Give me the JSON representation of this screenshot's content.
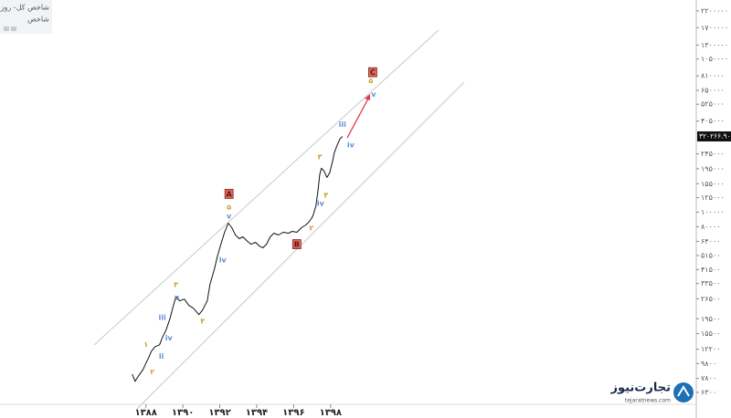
{
  "chart_data": {
    "type": "line",
    "title": "شاخص کل- روزانه",
    "subtitle": "شاخص",
    "log_scale": true,
    "color": "#111111",
    "x": [
      1387.26,
      1387.41,
      1387.6,
      1387.85,
      1388.0,
      1388.15,
      1388.3,
      1388.5,
      1388.74,
      1388.89,
      1389.09,
      1389.29,
      1389.49,
      1389.63,
      1389.83,
      1390.08,
      1390.33,
      1390.57,
      1390.87,
      1391.07,
      1391.32,
      1391.47,
      1391.71,
      1391.86,
      1392.06,
      1392.26,
      1392.46,
      1392.65,
      1392.85,
      1393.05,
      1393.25,
      1393.45,
      1393.69,
      1393.94,
      1394.14,
      1394.34,
      1394.53,
      1394.73,
      1394.93,
      1395.18,
      1395.43,
      1395.72,
      1395.92,
      1396.17,
      1396.42,
      1396.66,
      1396.81,
      1396.96,
      1397.06,
      1397.21,
      1397.31,
      1397.41,
      1397.5,
      1397.65,
      1397.8,
      1397.95,
      1398.1,
      1398.2,
      1398.35,
      1398.5,
      1398.65
    ],
    "values": [
      8340,
      7460,
      8110,
      8950,
      9870,
      10740,
      11850,
      12710,
      13070,
      14630,
      16370,
      19370,
      23920,
      27520,
      25650,
      26380,
      23920,
      22930,
      20780,
      22290,
      25650,
      33030,
      41930,
      50330,
      61250,
      73520,
      84610,
      78880,
      70500,
      66650,
      68540,
      64830,
      61250,
      63000,
      59560,
      57920,
      61250,
      68540,
      72510,
      70500,
      73520,
      72510,
      74530,
      73520,
      78880,
      82280,
      85810,
      90780,
      96010,
      110500,
      138300,
      178100,
      196400,
      188400,
      170700,
      183100,
      216700,
      249400,
      279000,
      307900,
      320266.9
    ],
    "xlim": [
      1380.1,
      1417.7
    ],
    "ylim": [
      4250,
      2600000
    ],
    "xticks": [
      {
        "value": 1388,
        "label": "۱۳۸۸"
      },
      {
        "value": 1390,
        "label": "۱۳۹۰"
      },
      {
        "value": 1392,
        "label": "۱۳۹۲"
      },
      {
        "value": 1394,
        "label": "۱۳۹۴"
      },
      {
        "value": 1396,
        "label": "۱۳۹۶"
      },
      {
        "value": 1398,
        "label": "۱۳۹۸"
      }
    ],
    "yticks": [
      {
        "value": 2200000,
        "label": "۲۲۰۰۰۰۰"
      },
      {
        "value": 1700000,
        "label": "۱۷۰۰۰۰۰"
      },
      {
        "value": 1300000,
        "label": "۱۳۰۰۰۰۰"
      },
      {
        "value": 1050000,
        "label": "۱۰۵۰۰۰۰"
      },
      {
        "value": 810000,
        "label": "۸۱۰۰۰۰"
      },
      {
        "value": 650000,
        "label": "۶۵۰۰۰۰"
      },
      {
        "value": 525000,
        "label": "۵۲۵۰۰۰"
      },
      {
        "value": 405000,
        "label": "۴۰۵۰۰۰"
      },
      {
        "value": 245000,
        "label": "۲۴۵۰۰۰"
      },
      {
        "value": 195000,
        "label": "۱۹۵۰۰۰"
      },
      {
        "value": 155000,
        "label": "۱۵۵۰۰۰"
      },
      {
        "value": 125000,
        "label": "۱۲۵۰۰۰"
      },
      {
        "value": 100000,
        "label": "۱۰۰۰۰۰"
      },
      {
        "value": 80000,
        "label": "۸۰۰۰۰"
      },
      {
        "value": 64000,
        "label": "۶۴۰۰۰"
      },
      {
        "value": 51500,
        "label": "۵۱۵۰۰"
      },
      {
        "value": 41500,
        "label": "۴۱۵۰۰"
      },
      {
        "value": 33500,
        "label": "۳۳۵۰۰"
      },
      {
        "value": 26500,
        "label": "۲۶۵۰۰"
      },
      {
        "value": 19500,
        "label": "۱۹۵۰۰"
      },
      {
        "value": 15500,
        "label": "۱۵۵۰۰"
      },
      {
        "value": 12200,
        "label": "۱۲۲۰۰"
      },
      {
        "value": 9800,
        "label": "۹۸۰۰"
      },
      {
        "value": 7800,
        "label": "۷۸۰۰"
      },
      {
        "value": 6300,
        "label": "۶۳۰۰"
      }
    ],
    "last_price": {
      "value": 320266.9,
      "label": "۳۲۰۲۶۶.۹۰"
    },
    "annotations": [
      {
        "text": "A",
        "x": 1392.5,
        "y": 132600,
        "color": "#e0665a",
        "box": true
      },
      {
        "text": "۵",
        "x": 1392.5,
        "y": 108900,
        "color": "#c9a227"
      },
      {
        "text": "v",
        "x": 1392.5,
        "y": 94700,
        "color": "#5b8fd6"
      },
      {
        "text": "B",
        "x": 1396.17,
        "y": 61250,
        "color": "#e0665a",
        "box": true
      },
      {
        "text": "C",
        "x": 1400.28,
        "y": 858000,
        "color": "#e0665a",
        "box": true
      },
      {
        "text": "۵",
        "x": 1400.18,
        "y": 756000,
        "color": "#c9a227"
      },
      {
        "text": "v",
        "x": 1400.33,
        "y": 612400,
        "color": "#5b8fd6"
      },
      {
        "text": "iii",
        "x": 1398.64,
        "y": 385500,
        "color": "#5b8fd6"
      },
      {
        "text": "iv",
        "x": 1399.09,
        "y": 283000,
        "color": "#5b8fd6"
      },
      {
        "text": "۳",
        "x": 1397.41,
        "y": 235700,
        "color": "#c9a227"
      },
      {
        "text": "۴",
        "x": 1397.75,
        "y": 130700,
        "color": "#c9a227"
      },
      {
        "text": "iv",
        "x": 1397.46,
        "y": 115200,
        "color": "#5b8fd6"
      },
      {
        "text": "۲",
        "x": 1396.96,
        "y": 78880,
        "color": "#c9a227"
      },
      {
        "text": "iv",
        "x": 1392.16,
        "y": 48250,
        "color": "#5b8fd6"
      },
      {
        "text": "۳",
        "x": 1389.63,
        "y": 33030,
        "color": "#c9a227"
      },
      {
        "text": "v",
        "x": 1389.68,
        "y": 27150,
        "color": "#5b8fd6"
      },
      {
        "text": "iii",
        "x": 1388.89,
        "y": 19920,
        "color": "#5b8fd6"
      },
      {
        "text": "iv",
        "x": 1389.24,
        "y": 14630,
        "color": "#5b8fd6"
      },
      {
        "text": "۴",
        "x": 1391.07,
        "y": 18830,
        "color": "#c9a227"
      },
      {
        "text": "۱",
        "x": 1388.0,
        "y": 13260,
        "color": "#c9a227"
      },
      {
        "text": "ii",
        "x": 1388.84,
        "y": 11050,
        "color": "#5b8fd6"
      },
      {
        "text": "۲",
        "x": 1388.35,
        "y": 8700,
        "color": "#c9a227"
      }
    ]
  },
  "watermark": {
    "brand": "تجارت‌نیوز",
    "url": "tejaratnews.com"
  }
}
